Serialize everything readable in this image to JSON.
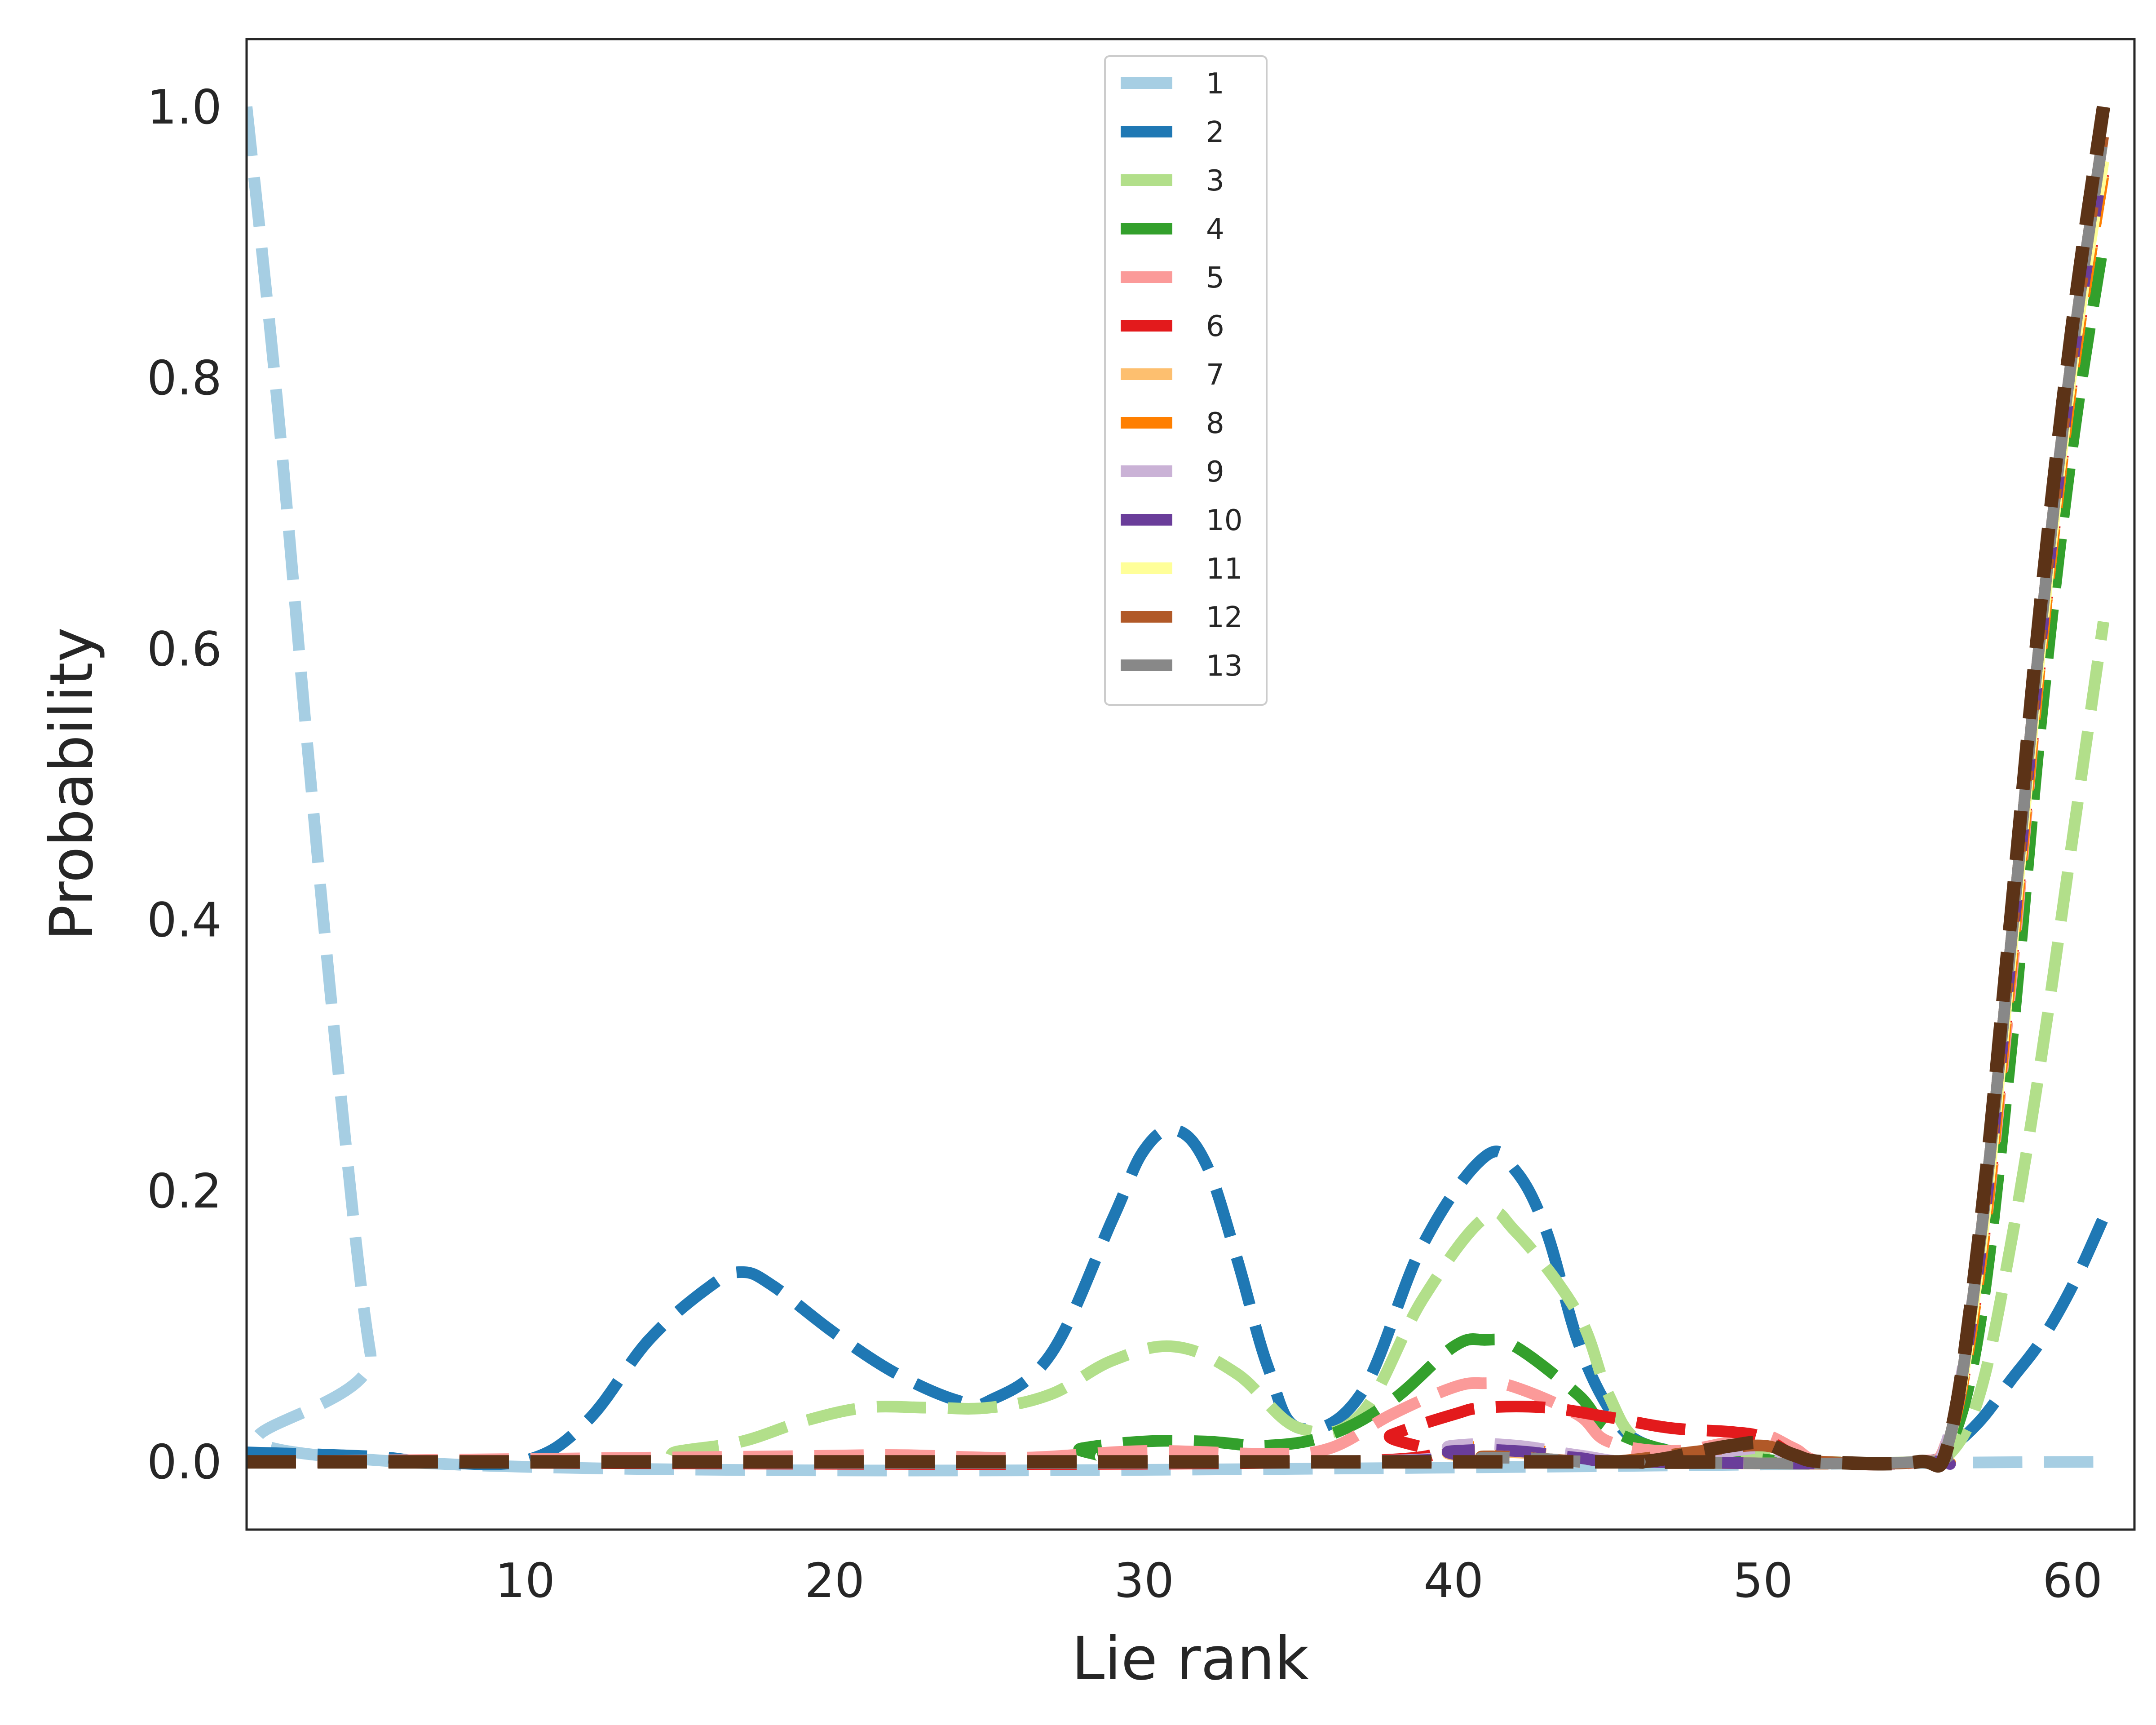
{
  "chart_data": {
    "type": "line",
    "title": "",
    "xlabel": "Lie rank",
    "ylabel": "Probability",
    "xlim": [
      1,
      62
    ],
    "ylim": [
      -0.05,
      1.05
    ],
    "xticks": [
      10,
      20,
      30,
      40,
      50,
      60
    ],
    "yticks": [
      0.0,
      0.2,
      0.4,
      0.6,
      0.8,
      1.0
    ],
    "tick_labels_x": [
      "10",
      "20",
      "30",
      "40",
      "50",
      "60"
    ],
    "tick_labels_y": [
      "0.0",
      "0.2",
      "0.4",
      "0.6",
      "0.8",
      "1.0"
    ],
    "grid": false,
    "legend_position": "upper-center",
    "line_style": "dashed",
    "series": [
      {
        "name": "1",
        "color": "#a6cee3",
        "points": [
          [
            1,
            1.0
          ],
          [
            2,
            0.78
          ],
          [
            3,
            0.52
          ],
          [
            4,
            0.28
          ],
          [
            5,
            0.08
          ],
          [
            6,
            0.0
          ],
          [
            61,
            0.0
          ]
        ]
      },
      {
        "name": "2",
        "color": "#1f78b4",
        "points": [
          [
            1,
            0.007
          ],
          [
            5,
            0.004
          ],
          [
            7,
            0.0
          ],
          [
            10,
            0.001
          ],
          [
            12,
            0.03
          ],
          [
            14,
            0.09
          ],
          [
            16,
            0.13
          ],
          [
            17,
            0.14
          ],
          [
            18,
            0.13
          ],
          [
            20,
            0.095
          ],
          [
            22,
            0.065
          ],
          [
            24,
            0.045
          ],
          [
            25,
            0.045
          ],
          [
            27,
            0.08
          ],
          [
            29,
            0.18
          ],
          [
            30,
            0.23
          ],
          [
            31,
            0.245
          ],
          [
            32,
            0.22
          ],
          [
            33,
            0.15
          ],
          [
            34,
            0.07
          ],
          [
            35,
            0.025
          ],
          [
            37,
            0.05
          ],
          [
            39,
            0.16
          ],
          [
            41,
            0.225
          ],
          [
            42,
            0.215
          ],
          [
            43,
            0.17
          ],
          [
            44,
            0.09
          ],
          [
            45,
            0.04
          ],
          [
            46,
            0.015
          ],
          [
            48,
            0.005
          ],
          [
            50,
            0.0
          ],
          [
            55,
            0.0
          ],
          [
            56,
            0.01
          ],
          [
            57,
            0.03
          ],
          [
            58,
            0.06
          ],
          [
            59,
            0.09
          ],
          [
            60,
            0.13
          ],
          [
            61,
            0.18
          ]
        ]
      },
      {
        "name": "3",
        "color": "#b2df8a",
        "points": [
          [
            1,
            0.0
          ],
          [
            13,
            0.0
          ],
          [
            15,
            0.008
          ],
          [
            17,
            0.015
          ],
          [
            19,
            0.03
          ],
          [
            21,
            0.04
          ],
          [
            23,
            0.04
          ],
          [
            25,
            0.04
          ],
          [
            27,
            0.05
          ],
          [
            29,
            0.075
          ],
          [
            31,
            0.085
          ],
          [
            33,
            0.065
          ],
          [
            35,
            0.025
          ],
          [
            37,
            0.035
          ],
          [
            39,
            0.12
          ],
          [
            41,
            0.18
          ],
          [
            42,
            0.17
          ],
          [
            44,
            0.11
          ],
          [
            45,
            0.05
          ],
          [
            46,
            0.015
          ],
          [
            48,
            0.005
          ],
          [
            50,
            0.005
          ],
          [
            52,
            0.0
          ],
          [
            55,
            0.0
          ],
          [
            56,
            0.005
          ],
          [
            57,
            0.05
          ],
          [
            58,
            0.16
          ],
          [
            59,
            0.3
          ],
          [
            60,
            0.46
          ],
          [
            61,
            0.62
          ]
        ]
      },
      {
        "name": "4",
        "color": "#33a02c",
        "points": [
          [
            1,
            0.0
          ],
          [
            26,
            0.0
          ],
          [
            28,
            0.01
          ],
          [
            30,
            0.015
          ],
          [
            32,
            0.015
          ],
          [
            34,
            0.012
          ],
          [
            36,
            0.02
          ],
          [
            38,
            0.045
          ],
          [
            40,
            0.085
          ],
          [
            41,
            0.09
          ],
          [
            42,
            0.085
          ],
          [
            44,
            0.05
          ],
          [
            45,
            0.025
          ],
          [
            47,
            0.008
          ],
          [
            49,
            0.005
          ],
          [
            51,
            0.0
          ],
          [
            55,
            0.0
          ],
          [
            56,
            0.01
          ],
          [
            57,
            0.1
          ],
          [
            58,
            0.3
          ],
          [
            59,
            0.55
          ],
          [
            60,
            0.75
          ],
          [
            61,
            0.9
          ]
        ]
      },
      {
        "name": "5",
        "color": "#fb9a99",
        "points": [
          [
            1,
            0.0
          ],
          [
            18,
            0.004
          ],
          [
            22,
            0.005
          ],
          [
            26,
            0.003
          ],
          [
            30,
            0.008
          ],
          [
            34,
            0.006
          ],
          [
            36,
            0.01
          ],
          [
            38,
            0.035
          ],
          [
            40,
            0.055
          ],
          [
            41,
            0.058
          ],
          [
            42,
            0.055
          ],
          [
            44,
            0.035
          ],
          [
            45,
            0.015
          ],
          [
            47,
            0.008
          ],
          [
            49,
            0.015
          ],
          [
            50,
            0.02
          ],
          [
            51,
            0.01
          ],
          [
            52,
            0.0
          ],
          [
            55,
            0.0
          ],
          [
            56,
            0.02
          ],
          [
            57,
            0.14
          ],
          [
            58,
            0.35
          ],
          [
            59,
            0.6
          ],
          [
            60,
            0.8
          ],
          [
            61,
            0.95
          ]
        ]
      },
      {
        "name": "6",
        "color": "#e31a1c",
        "points": [
          [
            1,
            0.0
          ],
          [
            36,
            0.0
          ],
          [
            38,
            0.02
          ],
          [
            40,
            0.035
          ],
          [
            41,
            0.04
          ],
          [
            43,
            0.04
          ],
          [
            45,
            0.033
          ],
          [
            47,
            0.025
          ],
          [
            49,
            0.022
          ],
          [
            50,
            0.018
          ],
          [
            51,
            0.005
          ],
          [
            52,
            0.0
          ],
          [
            55,
            0.0
          ],
          [
            56,
            0.015
          ],
          [
            57,
            0.14
          ],
          [
            58,
            0.36
          ],
          [
            59,
            0.6
          ],
          [
            60,
            0.8
          ],
          [
            61,
            0.95
          ]
        ]
      },
      {
        "name": "7",
        "color": "#fdbf6f",
        "points": [
          [
            1,
            0.0
          ],
          [
            36,
            0.0
          ],
          [
            40,
            0.007
          ],
          [
            42,
            0.007
          ],
          [
            44,
            0.003
          ],
          [
            46,
            0.0
          ],
          [
            55,
            0.0
          ],
          [
            56,
            0.015
          ],
          [
            57,
            0.14
          ],
          [
            58,
            0.36
          ],
          [
            59,
            0.6
          ],
          [
            60,
            0.8
          ],
          [
            61,
            0.95
          ]
        ]
      },
      {
        "name": "8",
        "color": "#ff7f00",
        "points": [
          [
            1,
            0.0
          ],
          [
            36,
            0.0
          ],
          [
            40,
            0.01
          ],
          [
            42,
            0.01
          ],
          [
            44,
            0.004
          ],
          [
            46,
            0.0
          ],
          [
            55,
            0.0
          ],
          [
            56,
            0.015
          ],
          [
            57,
            0.14
          ],
          [
            58,
            0.36
          ],
          [
            59,
            0.6
          ],
          [
            60,
            0.8
          ],
          [
            61,
            0.95
          ]
        ]
      },
      {
        "name": "9",
        "color": "#cab2d6",
        "points": [
          [
            1,
            0.0
          ],
          [
            36,
            0.0
          ],
          [
            40,
            0.012
          ],
          [
            42,
            0.012
          ],
          [
            44,
            0.005
          ],
          [
            46,
            0.0
          ],
          [
            49,
            0.008
          ],
          [
            50,
            0.01
          ],
          [
            51,
            0.004
          ],
          [
            52,
            0.0
          ],
          [
            55,
            0.0
          ],
          [
            56,
            0.02
          ],
          [
            57,
            0.16
          ],
          [
            58,
            0.38
          ],
          [
            59,
            0.62
          ],
          [
            60,
            0.82
          ],
          [
            61,
            0.97
          ]
        ]
      },
      {
        "name": "10",
        "color": "#6a3d9a",
        "points": [
          [
            1,
            0.0
          ],
          [
            36,
            0.0
          ],
          [
            40,
            0.008
          ],
          [
            42,
            0.008
          ],
          [
            44,
            0.003
          ],
          [
            46,
            0.0
          ],
          [
            55,
            0.0
          ],
          [
            56,
            0.015
          ],
          [
            57,
            0.15
          ],
          [
            58,
            0.37
          ],
          [
            59,
            0.61
          ],
          [
            60,
            0.81
          ],
          [
            61,
            0.96
          ]
        ]
      },
      {
        "name": "11",
        "color": "#ffff99",
        "points": [
          [
            1,
            0.0
          ],
          [
            38,
            0.0
          ],
          [
            41,
            0.004
          ],
          [
            43,
            0.002
          ],
          [
            45,
            0.0
          ],
          [
            55,
            0.0
          ],
          [
            56,
            0.015
          ],
          [
            57,
            0.15
          ],
          [
            58,
            0.37
          ],
          [
            59,
            0.61
          ],
          [
            60,
            0.81
          ],
          [
            61,
            0.96
          ]
        ]
      },
      {
        "name": "12",
        "color": "#b15928",
        "points": [
          [
            1,
            0.0
          ],
          [
            38,
            0.0
          ],
          [
            41,
            0.004
          ],
          [
            43,
            0.002
          ],
          [
            45,
            0.0
          ],
          [
            48,
            0.008
          ],
          [
            50,
            0.012
          ],
          [
            51,
            0.004
          ],
          [
            52,
            0.0
          ],
          [
            55,
            0.0
          ],
          [
            56,
            0.015
          ],
          [
            57,
            0.16
          ],
          [
            58,
            0.38
          ],
          [
            59,
            0.62
          ],
          [
            60,
            0.82
          ],
          [
            61,
            0.98
          ]
        ]
      },
      {
        "name": "13",
        "color": "#888888",
        "points": [
          [
            1,
            0.0
          ],
          [
            38,
            0.0
          ],
          [
            41,
            0.003
          ],
          [
            43,
            0.002
          ],
          [
            45,
            0.0
          ],
          [
            55,
            0.0
          ],
          [
            56,
            0.015
          ],
          [
            57,
            0.16
          ],
          [
            58,
            0.38
          ],
          [
            59,
            0.62
          ],
          [
            60,
            0.82
          ],
          [
            61,
            0.98
          ]
        ]
      },
      {
        "name": "",
        "color": "#5c3317",
        "points": [
          [
            1,
            0.0
          ],
          [
            45,
            0.0
          ],
          [
            46,
            0.0
          ],
          [
            47,
            0.003
          ],
          [
            48,
            0.008
          ],
          [
            49,
            0.012
          ],
          [
            50,
            0.014
          ],
          [
            51,
            0.005
          ],
          [
            52,
            0.0
          ],
          [
            55,
            0.0
          ],
          [
            56,
            0.015
          ],
          [
            57,
            0.17
          ],
          [
            58,
            0.4
          ],
          [
            59,
            0.64
          ],
          [
            60,
            0.84
          ],
          [
            61,
            1.0
          ]
        ]
      }
    ]
  }
}
